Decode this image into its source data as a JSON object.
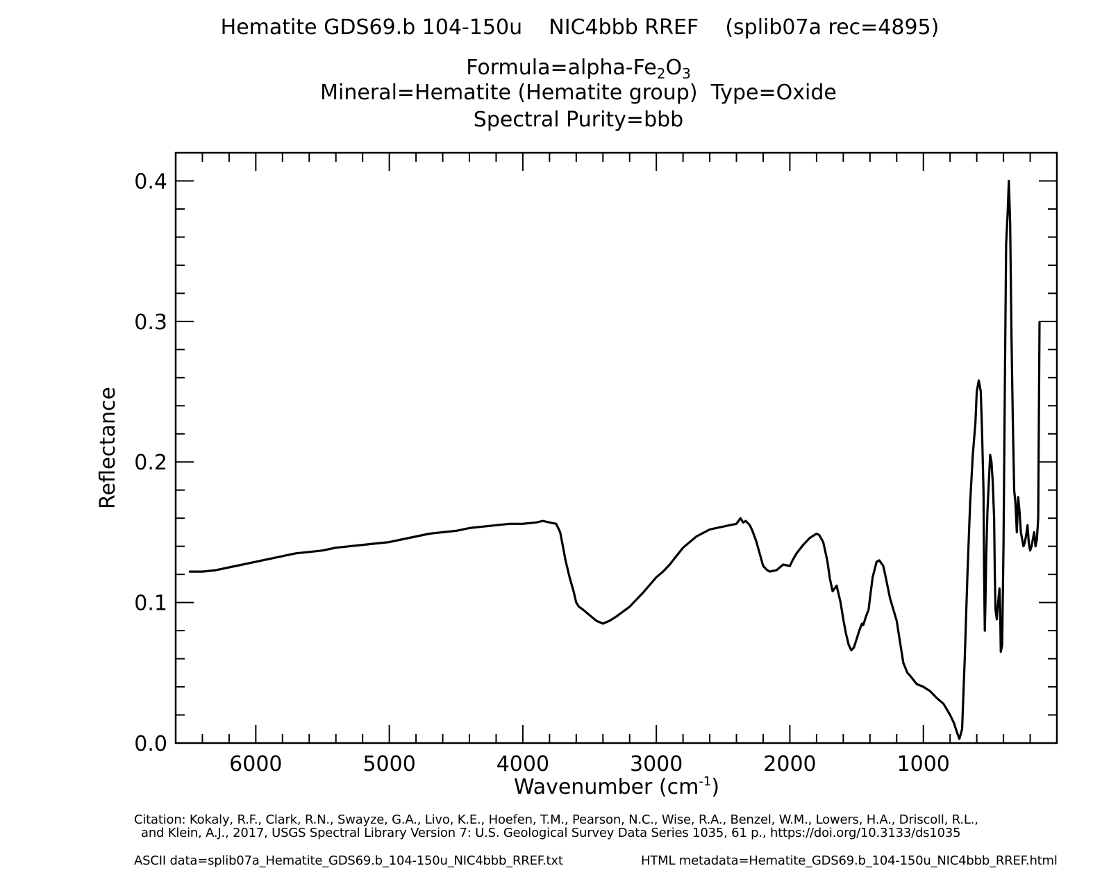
{
  "header": {
    "title": "Hematite GDS69.b 104-150u    NIC4bbb RREF    (splib07a rec=4895)",
    "formula_prefix": "Formula=alpha-Fe",
    "formula_sub1": "2",
    "formula_mid": "O",
    "formula_sub2": "3",
    "mineral_line": "Mineral=Hematite (Hematite group)  Type=Oxide",
    "purity_line": "Spectral Purity=bbb"
  },
  "footer": {
    "citation_line1": "Citation: Kokaly, R.F., Clark, R.N., Swayze, G.A., Livo, K.E., Hoefen, T.M., Pearson, N.C., Wise, R.A., Benzel, W.M., Lowers, H.A., Driscoll, R.L.,",
    "citation_line2": "and Klein, A.J., 2017, USGS Spectral Library Version 7: U.S. Geological Survey Data Series 1035, 61 p., https://doi.org/10.3133/ds1035",
    "ascii_data": "ASCII data=splib07a_Hematite_GDS69.b_104-150u_NIC4bbb_RREF.txt",
    "html_metadata": "HTML metadata=Hematite_GDS69.b_104-150u_NIC4bbb_RREF.html"
  },
  "chart_data": {
    "type": "line",
    "xlabel_main": "Wavenumber (cm",
    "xlabel_sup": "-1",
    "xlabel_end": ")",
    "ylabel": "Reflectance",
    "xlim": [
      6600,
      0
    ],
    "ylim": [
      0.0,
      0.42
    ],
    "x_ticks": [
      6000,
      5000,
      4000,
      3000,
      2000,
      1000
    ],
    "x_tick_labels": [
      "6000",
      "5000",
      "4000",
      "3000",
      "2000",
      "1000"
    ],
    "y_ticks": [
      0.0,
      0.1,
      0.2,
      0.3,
      0.4
    ],
    "y_tick_labels": [
      "0.0",
      "0.1",
      "0.2",
      "0.3",
      "0.4"
    ],
    "line_color": "#000000",
    "series": [
      {
        "x": [
          6500,
          6400,
          6300,
          6200,
          6100,
          6000,
          5900,
          5800,
          5700,
          5600,
          5500,
          5400,
          5300,
          5200,
          5100,
          5000,
          4900,
          4800,
          4700,
          4600,
          4500,
          4400,
          4300,
          4200,
          4100,
          4000,
          3900,
          3850,
          3800,
          3750,
          3720,
          3700,
          3680,
          3650,
          3620,
          3600,
          3580,
          3550,
          3500,
          3450,
          3400,
          3350,
          3300,
          3200,
          3100,
          3000,
          2950,
          2900,
          2850,
          2800,
          2700,
          2600,
          2500,
          2400,
          2370,
          2350,
          2330,
          2300,
          2280,
          2250,
          2200,
          2170,
          2150,
          2100,
          2050,
          2000,
          1980,
          1950,
          1900,
          1850,
          1800,
          1780,
          1750,
          1720,
          1700,
          1680,
          1650,
          1640,
          1620,
          1600,
          1580,
          1560,
          1540,
          1520,
          1500,
          1480,
          1460,
          1450,
          1430,
          1410,
          1400,
          1380,
          1350,
          1330,
          1300,
          1280,
          1250,
          1200,
          1180,
          1150,
          1120,
          1100,
          1050,
          1000,
          950,
          900,
          850,
          800,
          770,
          750,
          730,
          710,
          690,
          670,
          650,
          630,
          610,
          600,
          585,
          570,
          560,
          550,
          545,
          540,
          535,
          530,
          520,
          510,
          500,
          490,
          480,
          470,
          465,
          460,
          450,
          440,
          430,
          425,
          420,
          410,
          400,
          390,
          380,
          370,
          360,
          350,
          340,
          330,
          320,
          310,
          300,
          290,
          280,
          270,
          260,
          250,
          240,
          230,
          220,
          210,
          200,
          190,
          180,
          170,
          160,
          150,
          140,
          130
        ],
        "y": [
          0.122,
          0.122,
          0.123,
          0.125,
          0.127,
          0.129,
          0.131,
          0.133,
          0.135,
          0.136,
          0.137,
          0.139,
          0.14,
          0.141,
          0.142,
          0.143,
          0.145,
          0.147,
          0.149,
          0.15,
          0.151,
          0.153,
          0.154,
          0.155,
          0.156,
          0.156,
          0.157,
          0.158,
          0.157,
          0.156,
          0.15,
          0.14,
          0.13,
          0.118,
          0.108,
          0.1,
          0.097,
          0.095,
          0.091,
          0.087,
          0.085,
          0.087,
          0.09,
          0.097,
          0.107,
          0.118,
          0.122,
          0.127,
          0.133,
          0.139,
          0.147,
          0.152,
          0.154,
          0.156,
          0.16,
          0.157,
          0.158,
          0.155,
          0.151,
          0.143,
          0.126,
          0.123,
          0.122,
          0.123,
          0.127,
          0.126,
          0.13,
          0.135,
          0.141,
          0.146,
          0.149,
          0.148,
          0.143,
          0.13,
          0.117,
          0.108,
          0.112,
          0.108,
          0.1,
          0.088,
          0.078,
          0.07,
          0.066,
          0.068,
          0.074,
          0.08,
          0.085,
          0.084,
          0.09,
          0.095,
          0.103,
          0.118,
          0.129,
          0.13,
          0.126,
          0.117,
          0.103,
          0.087,
          0.075,
          0.057,
          0.05,
          0.048,
          0.042,
          0.04,
          0.037,
          0.032,
          0.028,
          0.02,
          0.014,
          0.008,
          0.003,
          0.01,
          0.06,
          0.12,
          0.17,
          0.205,
          0.228,
          0.25,
          0.258,
          0.25,
          0.22,
          0.18,
          0.12,
          0.08,
          0.1,
          0.13,
          0.165,
          0.185,
          0.205,
          0.2,
          0.185,
          0.16,
          0.12,
          0.095,
          0.088,
          0.1,
          0.11,
          0.095,
          0.065,
          0.07,
          0.14,
          0.25,
          0.355,
          0.375,
          0.4,
          0.37,
          0.29,
          0.23,
          0.18,
          0.17,
          0.15,
          0.175,
          0.165,
          0.15,
          0.145,
          0.14,
          0.143,
          0.148,
          0.155,
          0.142,
          0.137,
          0.14,
          0.145,
          0.15,
          0.14,
          0.145,
          0.16,
          0.3
        ]
      }
    ]
  }
}
